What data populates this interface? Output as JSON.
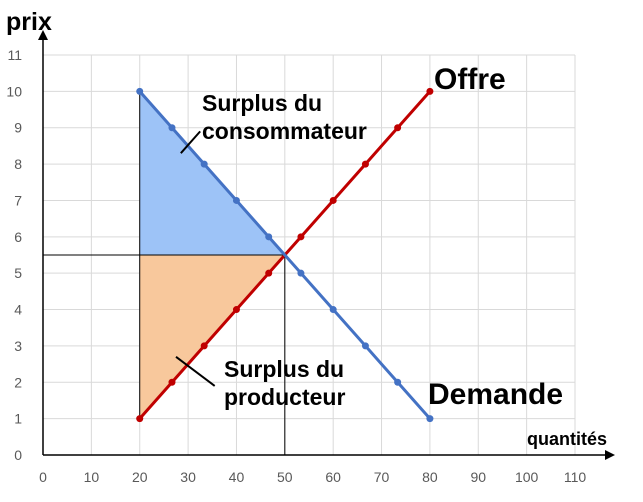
{
  "chart_data": {
    "type": "line",
    "xlabel": "quantités",
    "ylabel": "prix",
    "xlim": [
      0,
      110
    ],
    "ylim": [
      0,
      11
    ],
    "xticks": [
      0,
      10,
      20,
      30,
      40,
      50,
      60,
      70,
      80,
      90,
      100,
      110
    ],
    "yticks": [
      0,
      1,
      2,
      3,
      4,
      5,
      6,
      7,
      8,
      9,
      10,
      11
    ],
    "grid": true,
    "series": [
      {
        "name": "Offre",
        "color": "#c00000",
        "x": [
          20,
          26.67,
          33.33,
          40,
          46.67,
          53.33,
          60,
          66.67,
          73.33,
          80
        ],
        "y": [
          1,
          2,
          3,
          4,
          5,
          6,
          7,
          8,
          9,
          10
        ]
      },
      {
        "name": "Demande",
        "color": "#4472c4",
        "x": [
          20,
          26.67,
          33.33,
          40,
          46.67,
          53.33,
          60,
          66.67,
          73.33,
          80
        ],
        "y": [
          10,
          9,
          8,
          7,
          6,
          5,
          4,
          3,
          2,
          1
        ]
      }
    ],
    "equilibrium": {
      "x": 50,
      "y": 5.5
    },
    "areas": [
      {
        "label": "Surplus du consommateur",
        "color": "#9dc3f7"
      },
      {
        "label": "Surplus du producteur",
        "color": "#f8c89c"
      }
    ],
    "annotations": {
      "consumer": [
        "Surplus du",
        "consommateur"
      ],
      "producer": [
        "Surplus du",
        "producteur"
      ]
    }
  }
}
